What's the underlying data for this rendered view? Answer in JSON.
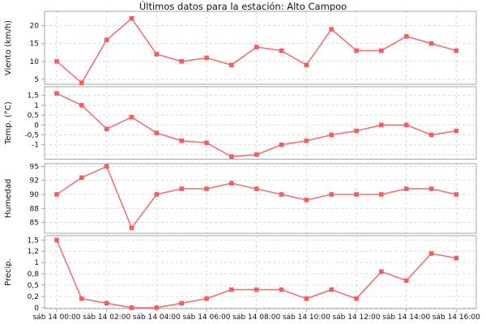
{
  "chart_data": {
    "type": "line",
    "title": "Últimos datos para la estación: Alto Campoo",
    "station": "Alto Campoo",
    "legend": "none",
    "grid": "dashed",
    "n_points": 17,
    "x_interval_per_point": "1 hour",
    "colors": {
      "series": "#f97072",
      "marker": "#f75d5f",
      "grid": "#d9d9d9",
      "border": "#a6a6ad",
      "text": "#111111"
    },
    "x": {
      "labels": [
        "sáb 14 00:00",
        "sáb 14 02:00",
        "sáb 14 04:00",
        "sáb 14 06:00",
        "sáb 14 08:00",
        "sáb 14 10:00",
        "sáb 14 12:00",
        "sáb 14 14:00",
        "sáb 14 16:00"
      ]
    },
    "subplots": [
      {
        "name": "viento",
        "ylabel": "Viento (km/h)",
        "ylim": [
          3.6,
          24.0
        ],
        "yticks": [
          {
            "v": 20,
            "label": "20"
          },
          {
            "v": 15,
            "label": "15"
          },
          {
            "v": 10,
            "label": "10"
          },
          {
            "v": 5,
            "label": "5"
          }
        ],
        "values": [
          10,
          4,
          16,
          22,
          12,
          10,
          11,
          9,
          14,
          13,
          9,
          19,
          13,
          13,
          17,
          15,
          13
        ]
      },
      {
        "name": "temp",
        "ylabel": "Temp. (°C)",
        "ylim": [
          -1.73,
          1.94
        ],
        "yticks": [
          {
            "v": 1.5,
            "label": "1,5"
          },
          {
            "v": 1,
            "label": "1"
          },
          {
            "v": 0.5,
            "label": "0,5"
          },
          {
            "v": 0,
            "label": "0"
          },
          {
            "v": -0.5,
            "label": "-0,5"
          },
          {
            "v": -1,
            "label": "-1"
          },
          {
            "v": -1.5,
            "label": ""
          }
        ],
        "values": [
          1.6,
          1.0,
          -0.2,
          0.4,
          -0.4,
          -0.8,
          -0.9,
          -1.6,
          -1.5,
          -1.0,
          -0.8,
          -0.5,
          -0.3,
          0.0,
          0.0,
          -0.5,
          -0.3
        ]
      },
      {
        "name": "humedad",
        "ylabel": "Humedad",
        "ylim": [
          83.05,
          95.5
        ],
        "yticks": [
          {
            "v": 95,
            "label": "95"
          },
          {
            "v": 92.5,
            "label": "92"
          },
          {
            "v": 90,
            "label": "90"
          },
          {
            "v": 87.5,
            "label": "88"
          },
          {
            "v": 85,
            "label": "85"
          }
        ],
        "values": [
          90,
          93,
          95,
          84,
          90,
          91,
          91,
          92,
          91,
          90,
          89,
          90,
          90,
          90,
          91,
          91,
          90
        ]
      },
      {
        "name": "precip",
        "ylabel": "Precip.",
        "ylim": [
          -0.02,
          1.595
        ],
        "yticks": [
          {
            "v": 1.5,
            "label": "1,5"
          },
          {
            "v": 1.25,
            "label": "1,2"
          },
          {
            "v": 1,
            "label": "1"
          },
          {
            "v": 0.75,
            "label": "0,8"
          },
          {
            "v": 0.5,
            "label": "0,5"
          },
          {
            "v": 0.25,
            "label": "0,2"
          },
          {
            "v": 0,
            "label": "0"
          }
        ],
        "values": [
          1.5,
          0.2,
          0.1,
          0,
          0,
          0.1,
          0.2,
          0.4,
          0.4,
          0.4,
          0.2,
          0.4,
          0.2,
          0.8,
          0.6,
          1.2,
          1.1
        ]
      }
    ]
  }
}
